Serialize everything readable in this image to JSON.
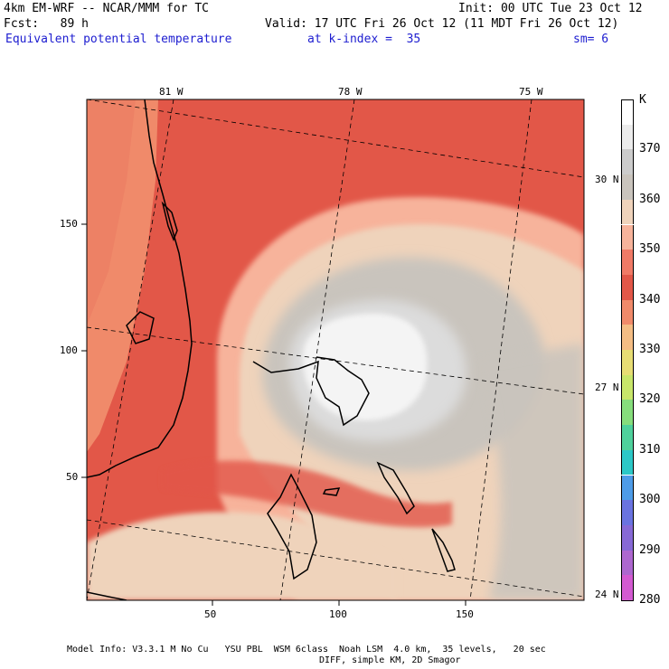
{
  "header": {
    "line1_left": "4km EM-WRF -- NCAR/MMM for TC",
    "line1_right": "Init: 00 UTC Tue 23 Oct 12",
    "line2_left": "Fcst:   89 h",
    "line2_right": "Valid: 17 UTC Fri 26 Oct 12 (11 MDT Fri 26 Oct 12)",
    "field": "Equivalent potential temperature",
    "level": "at k-index =  35",
    "smooth": "sm= 6"
  },
  "axes": {
    "x_ticks": [
      "50",
      "100",
      "150"
    ],
    "y_ticks": [
      "150",
      "100",
      "50"
    ],
    "lon_labels": [
      "81 W",
      "78 W",
      "75 W"
    ],
    "lat_labels": [
      "30 N",
      "27 N",
      "24 N"
    ]
  },
  "legend": {
    "unit": "K",
    "levels": [
      "370",
      "360",
      "350",
      "340",
      "330",
      "320",
      "310",
      "300",
      "290",
      "280"
    ],
    "colors": [
      "#ffffff",
      "#ececec",
      "#cccccc",
      "#c9c4bd",
      "#efd3bb",
      "#f7b39b",
      "#f07a66",
      "#e25748",
      "#f08a6a",
      "#f4bd84",
      "#e7dd74",
      "#c8e66a",
      "#86dd7c",
      "#4fd19c",
      "#2cc8c7",
      "#4e9ce8",
      "#6a73e0",
      "#8769d6",
      "#ad67cf",
      "#d35ad1"
    ]
  },
  "footer": {
    "line1": "Model Info: V3.3.1 M No Cu   YSU PBL  WSM 6class  Noah LSM  4.0 km,  35 levels,   20 sec",
    "line2": "DIFF, simple KM, 2D Smagor"
  }
}
